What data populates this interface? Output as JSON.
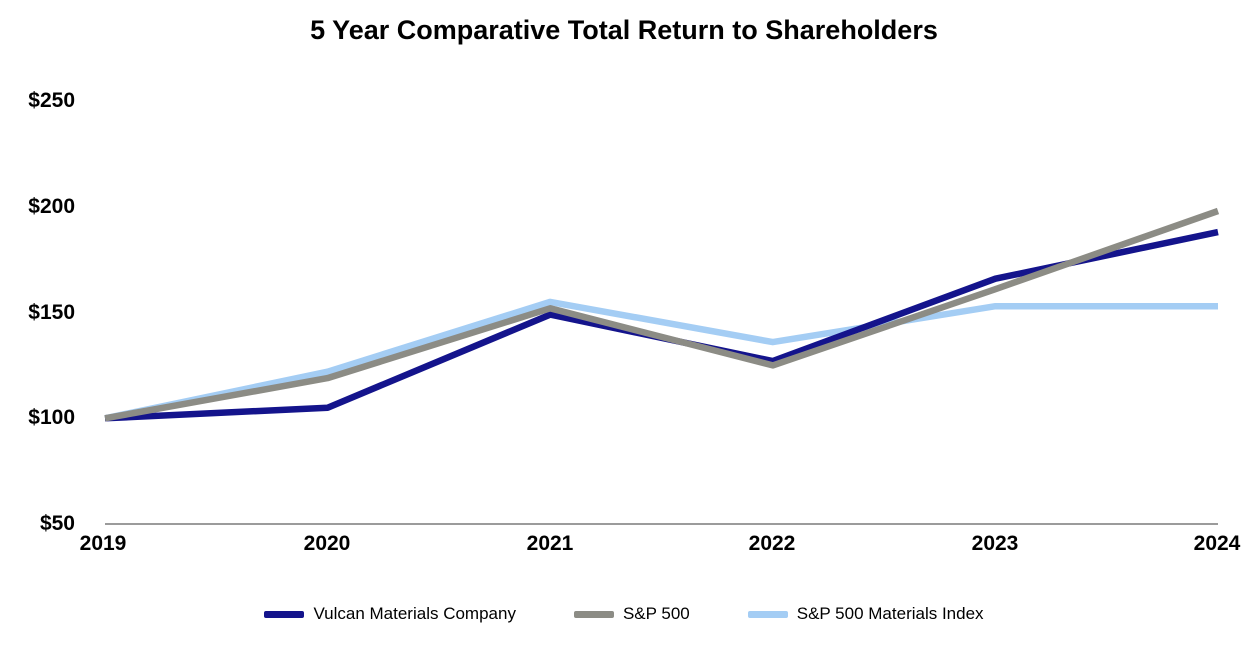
{
  "title": "5 Year Comparative Total Return to Shareholders",
  "chart_data": {
    "type": "line",
    "title": "5 Year Comparative Total Return to Shareholders",
    "xlabel": "",
    "ylabel": "",
    "x": [
      2019,
      2020,
      2021,
      2022,
      2023,
      2024
    ],
    "x_tick_labels": [
      "2019",
      "2020",
      "2021",
      "2022",
      "2023",
      "2024"
    ],
    "y_ticks": [
      250,
      200,
      150,
      100,
      50
    ],
    "y_tick_labels": [
      "$250",
      "$200",
      "$150",
      "$100",
      "$50"
    ],
    "ylim": [
      50,
      250
    ],
    "grid": false,
    "legend_position": "bottom",
    "axis_color": "#9B9B9B",
    "series": [
      {
        "name": "Vulcan Materials Company",
        "color": "#14148C",
        "values": [
          100,
          105,
          149,
          127,
          166,
          188
        ]
      },
      {
        "name": "S&P 500",
        "color": "#8C8C85",
        "values": [
          100,
          119,
          152,
          125,
          161,
          198
        ]
      },
      {
        "name": "S&P 500 Materials Index",
        "color": "#A4CDF4",
        "values": [
          100,
          122,
          155,
          136,
          153,
          153
        ]
      }
    ]
  }
}
